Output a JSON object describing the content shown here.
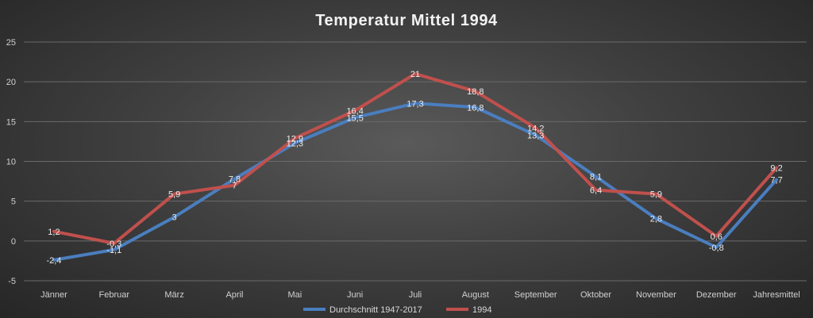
{
  "chart_data": {
    "type": "line",
    "title": "Temperatur Mittel 1994",
    "xlabel": "",
    "ylabel": "",
    "categories": [
      "Jänner",
      "Februar",
      "März",
      "April",
      "Mai",
      "Juni",
      "Juli",
      "August",
      "September",
      "Oktober",
      "November",
      "Dezember",
      "Jahresmittel"
    ],
    "ylim": [
      -5,
      25
    ],
    "yticks": [
      "-5",
      "0",
      "5",
      "10",
      "15",
      "20",
      "25"
    ],
    "grid": true,
    "legend_position": "bottom",
    "series": [
      {
        "name": "Durchschnitt 1947-2017",
        "color": "#4a7ebf",
        "values": [
          -2.4,
          -1.1,
          3,
          7.8,
          12.3,
          15.5,
          17.3,
          16.8,
          13.3,
          8.1,
          2.8,
          -0.8,
          7.7
        ],
        "labels": [
          "-2,4",
          "-1,1",
          "3",
          "7,8",
          "12,3",
          "15,5",
          "17,3",
          "16,8",
          "13,3",
          "8,1",
          "2,8",
          "-0,8",
          "7,7"
        ]
      },
      {
        "name": "1994",
        "color": "#c0504d",
        "values": [
          1.2,
          -0.3,
          5.9,
          7,
          12.9,
          16.4,
          21,
          18.8,
          14.2,
          6.4,
          5.9,
          0.6,
          9.2
        ],
        "labels": [
          "1,2",
          "-0,3",
          "5,9",
          "7",
          "12,9",
          "16,4",
          "21",
          "18,8",
          "14,2",
          "6,4",
          "5,9",
          "0,6",
          "9,2"
        ]
      }
    ]
  }
}
